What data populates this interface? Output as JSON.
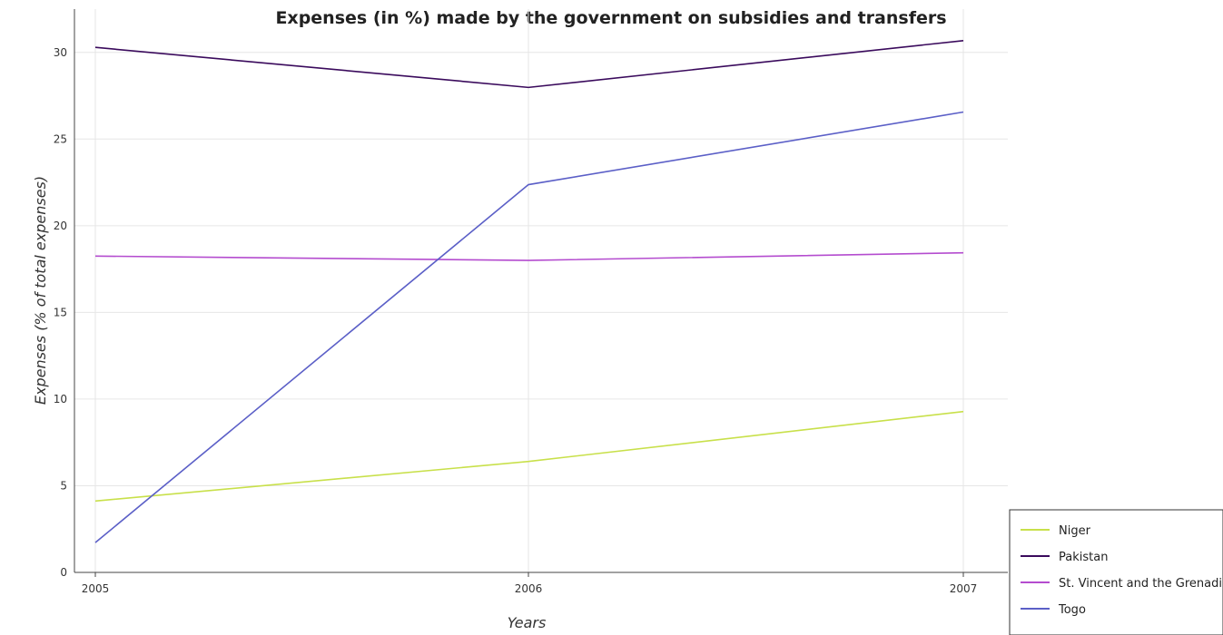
{
  "chart_data": {
    "type": "line",
    "title": "Expenses (in %) made by the government on subsidies and transfers",
    "xlabel": "Years",
    "ylabel": "Expenses (% of total expenses)",
    "x": [
      "2005",
      "2006",
      "2007"
    ],
    "ylim": [
      0,
      32.5
    ],
    "yticks": [
      "0",
      "5",
      "10",
      "15",
      "20",
      "25",
      "30"
    ],
    "grid": true,
    "legend_position": "bottom-right",
    "series": [
      {
        "name": "Niger",
        "color": "#c8e04a",
        "values": [
          4.12,
          6.4,
          9.28
        ]
      },
      {
        "name": "Pakistan",
        "color": "#3a0a5c",
        "values": [
          30.29,
          27.98,
          30.68
        ]
      },
      {
        "name": "St. Vincent and the Grenadines",
        "color": "#b44ccf",
        "values": [
          18.25,
          18.0,
          18.44
        ]
      },
      {
        "name": "Togo",
        "color": "#5b5fc7",
        "values": [
          1.72,
          22.37,
          26.56
        ]
      }
    ]
  }
}
